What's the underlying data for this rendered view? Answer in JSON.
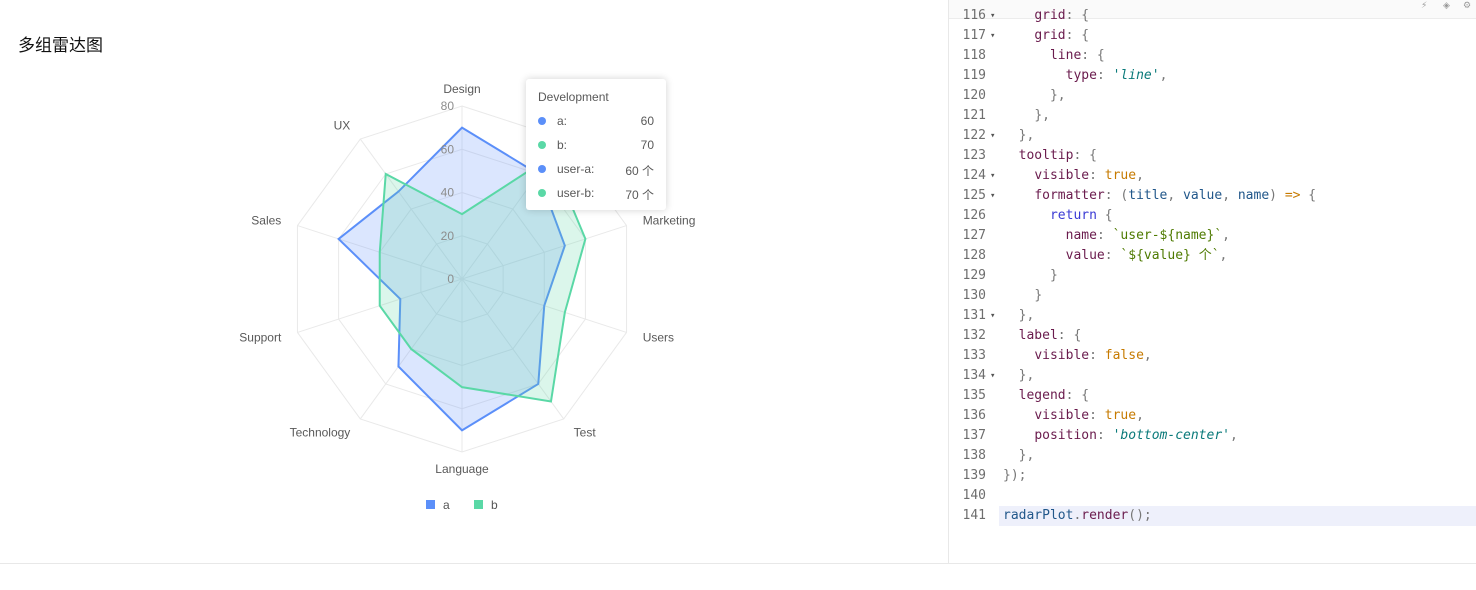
{
  "page": {
    "title": "多组雷达图"
  },
  "chart_data": {
    "type": "radar",
    "axes": [
      "Design",
      "Development",
      "Marketing",
      "Users",
      "Test",
      "Language",
      "Technology",
      "Support",
      "Sales",
      "UX"
    ],
    "rlim": [
      0,
      80
    ],
    "ticks": [
      "0",
      "20",
      "40",
      "60",
      "80"
    ],
    "series": [
      {
        "name": "a",
        "color": "#5B8FF9",
        "values": [
          70,
          60,
          50,
          40,
          60,
          70,
          50,
          30,
          60,
          50
        ]
      },
      {
        "name": "b",
        "color": "#5AD8A6",
        "values": [
          30,
          70,
          60,
          50,
          70,
          50,
          40,
          40,
          40,
          60
        ]
      }
    ],
    "grid": "polygon",
    "legend": {
      "position": "bottom-center"
    }
  },
  "tooltip": {
    "title": "Development",
    "rows": [
      {
        "name": "a:",
        "value": "60",
        "color": "#5B8FF9"
      },
      {
        "name": "b:",
        "value": "70",
        "color": "#5AD8A6"
      },
      {
        "name": "user-a:",
        "value": "60 个",
        "color": "#5B8FF9"
      },
      {
        "name": "user-b:",
        "value": "70 个",
        "color": "#5AD8A6"
      }
    ]
  },
  "code": {
    "lines": [
      {
        "no": "116",
        "fold": true,
        "tokens": [
          [
            "    ",
            ""
          ],
          [
            "grid",
            "t-prop"
          ],
          [
            ": {",
            "t-punc"
          ]
        ]
      },
      {
        "no": "117",
        "fold": true,
        "tokens": [
          [
            "    ",
            ""
          ],
          [
            "grid",
            "t-prop"
          ],
          [
            ": {",
            "t-punc"
          ]
        ]
      },
      {
        "no": "118",
        "fold": false,
        "tokens": [
          [
            "      ",
            ""
          ],
          [
            "line",
            "t-prop"
          ],
          [
            ": {",
            "t-punc"
          ]
        ]
      },
      {
        "no": "119",
        "fold": false,
        "tokens": [
          [
            "        ",
            ""
          ],
          [
            "type",
            "t-prop"
          ],
          [
            ": ",
            "t-punc"
          ],
          [
            "'line'",
            "t-str"
          ],
          [
            ",",
            "t-punc"
          ]
        ]
      },
      {
        "no": "120",
        "fold": false,
        "tokens": [
          [
            "      ",
            ""
          ],
          [
            "},",
            "t-punc"
          ]
        ]
      },
      {
        "no": "121",
        "fold": false,
        "tokens": [
          [
            "    ",
            ""
          ],
          [
            "},",
            "t-punc"
          ]
        ]
      },
      {
        "no": "122",
        "fold": true,
        "tokens": [
          [
            "  ",
            ""
          ],
          [
            "},",
            "t-punc"
          ]
        ]
      },
      {
        "no": "123",
        "fold": false,
        "tokens": [
          [
            "  ",
            ""
          ],
          [
            "tooltip",
            "t-prop"
          ],
          [
            ": {",
            "t-punc"
          ]
        ]
      },
      {
        "no": "124",
        "fold": true,
        "tokens": [
          [
            "    ",
            ""
          ],
          [
            "visible",
            "t-prop"
          ],
          [
            ": ",
            "t-punc"
          ],
          [
            "true",
            "t-bool"
          ],
          [
            ",",
            "t-punc"
          ]
        ]
      },
      {
        "no": "125",
        "fold": true,
        "tokens": [
          [
            "    ",
            ""
          ],
          [
            "formatter",
            "t-prop"
          ],
          [
            ": (",
            "t-punc"
          ],
          [
            "title",
            "t-arg"
          ],
          [
            ", ",
            "t-punc"
          ],
          [
            "value",
            "t-arg"
          ],
          [
            ", ",
            "t-punc"
          ],
          [
            "name",
            "t-arg"
          ],
          [
            ") ",
            "t-punc"
          ],
          [
            "=>",
            "t-arrow"
          ],
          [
            " {",
            "t-punc"
          ]
        ]
      },
      {
        "no": "126",
        "fold": false,
        "tokens": [
          [
            "      ",
            ""
          ],
          [
            "return",
            "t-kw"
          ],
          [
            " {",
            "t-punc"
          ]
        ]
      },
      {
        "no": "127",
        "fold": false,
        "tokens": [
          [
            "        ",
            ""
          ],
          [
            "name",
            "t-prop"
          ],
          [
            ": ",
            "t-punc"
          ],
          [
            "`user-${name}`",
            "t-tpl"
          ],
          [
            ",",
            "t-punc"
          ]
        ]
      },
      {
        "no": "128",
        "fold": false,
        "tokens": [
          [
            "        ",
            ""
          ],
          [
            "value",
            "t-prop"
          ],
          [
            ": ",
            "t-punc"
          ],
          [
            "`${value} 个`",
            "t-tpl"
          ],
          [
            ",",
            "t-punc"
          ]
        ]
      },
      {
        "no": "129",
        "fold": false,
        "tokens": [
          [
            "      ",
            ""
          ],
          [
            "}",
            "t-punc"
          ]
        ]
      },
      {
        "no": "130",
        "fold": false,
        "tokens": [
          [
            "    ",
            ""
          ],
          [
            "}",
            "t-punc"
          ]
        ]
      },
      {
        "no": "131",
        "fold": true,
        "tokens": [
          [
            "  ",
            ""
          ],
          [
            "},",
            "t-punc"
          ]
        ]
      },
      {
        "no": "132",
        "fold": false,
        "tokens": [
          [
            "  ",
            ""
          ],
          [
            "label",
            "t-prop"
          ],
          [
            ": {",
            "t-punc"
          ]
        ]
      },
      {
        "no": "133",
        "fold": false,
        "tokens": [
          [
            "    ",
            ""
          ],
          [
            "visible",
            "t-prop"
          ],
          [
            ": ",
            "t-punc"
          ],
          [
            "false",
            "t-bool"
          ],
          [
            ",",
            "t-punc"
          ]
        ]
      },
      {
        "no": "134",
        "fold": true,
        "tokens": [
          [
            "  ",
            ""
          ],
          [
            "},",
            "t-punc"
          ]
        ]
      },
      {
        "no": "135",
        "fold": false,
        "tokens": [
          [
            "  ",
            ""
          ],
          [
            "legend",
            "t-prop"
          ],
          [
            ": {",
            "t-punc"
          ]
        ]
      },
      {
        "no": "136",
        "fold": false,
        "tokens": [
          [
            "    ",
            ""
          ],
          [
            "visible",
            "t-prop"
          ],
          [
            ": ",
            "t-punc"
          ],
          [
            "true",
            "t-bool"
          ],
          [
            ",",
            "t-punc"
          ]
        ]
      },
      {
        "no": "137",
        "fold": false,
        "tokens": [
          [
            "    ",
            ""
          ],
          [
            "position",
            "t-prop"
          ],
          [
            ": ",
            "t-punc"
          ],
          [
            "'bottom-center'",
            "t-str"
          ],
          [
            ",",
            "t-punc"
          ]
        ]
      },
      {
        "no": "138",
        "fold": false,
        "tokens": [
          [
            "  ",
            ""
          ],
          [
            "},",
            "t-punc"
          ]
        ]
      },
      {
        "no": "139",
        "fold": false,
        "tokens": [
          [
            "",
            ""
          ],
          [
            "});",
            "t-punc"
          ]
        ]
      },
      {
        "no": "140",
        "fold": false,
        "tokens": [
          [
            "",
            ""
          ]
        ]
      },
      {
        "no": "141",
        "fold": false,
        "active": true,
        "tokens": [
          [
            "",
            ""
          ],
          [
            "radarPlot",
            "t-fn"
          ],
          [
            ".",
            "t-punc"
          ],
          [
            "render",
            "t-prop"
          ],
          [
            "();",
            "t-punc"
          ]
        ]
      }
    ]
  }
}
